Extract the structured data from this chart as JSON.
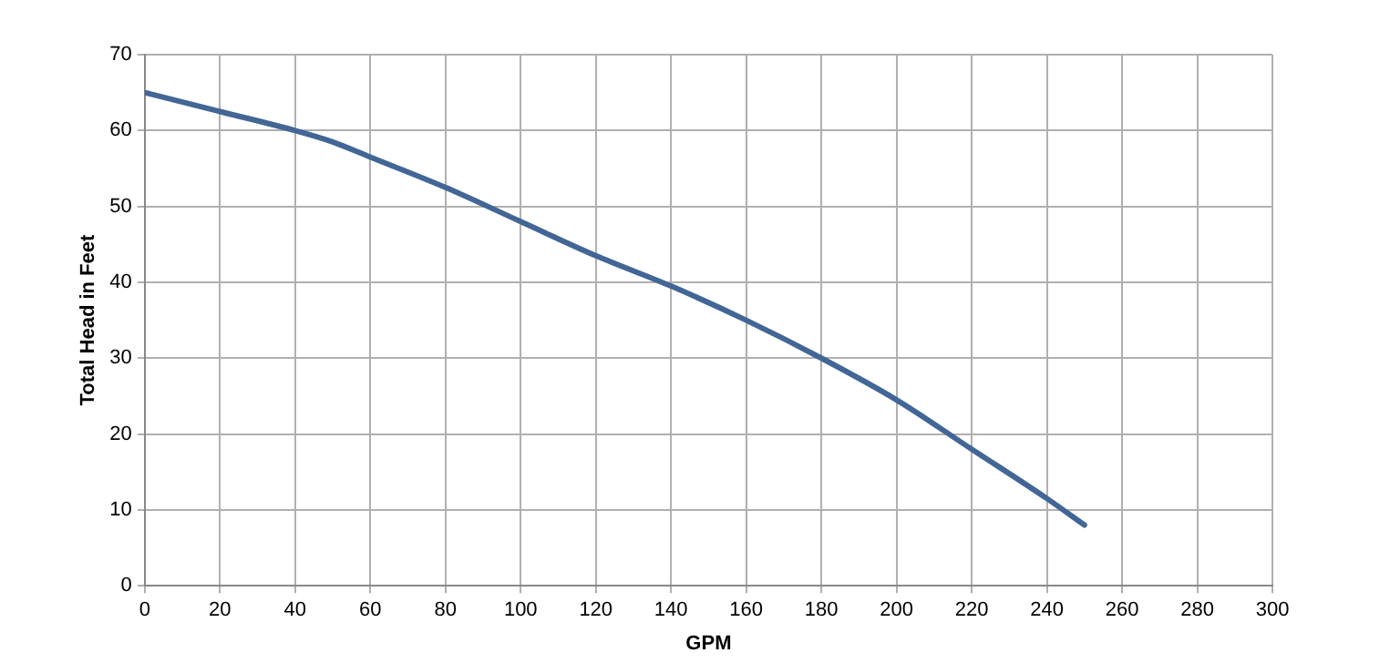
{
  "chart_data": {
    "type": "line",
    "xlabel": "GPM",
    "ylabel": "Total Head in Feet",
    "x": [
      0,
      20,
      40,
      50,
      60,
      80,
      100,
      120,
      140,
      160,
      180,
      200,
      220,
      240,
      250
    ],
    "series": [
      {
        "color": "#426695",
        "values": [
          65,
          62.5,
          60,
          58.5,
          56.5,
          52.5,
          48,
          43.5,
          39.5,
          35,
          30,
          24.5,
          18,
          11.5,
          8
        ]
      }
    ],
    "xlim": [
      0,
      300
    ],
    "xticks": [
      0,
      20,
      40,
      60,
      80,
      100,
      120,
      140,
      160,
      180,
      200,
      220,
      240,
      260,
      280,
      300
    ],
    "ylim": [
      0,
      70
    ],
    "yticks": [
      0,
      10,
      20,
      30,
      40,
      50,
      60,
      70
    ],
    "grid": true,
    "legend": false,
    "marker": "none",
    "line_style": "solid"
  }
}
